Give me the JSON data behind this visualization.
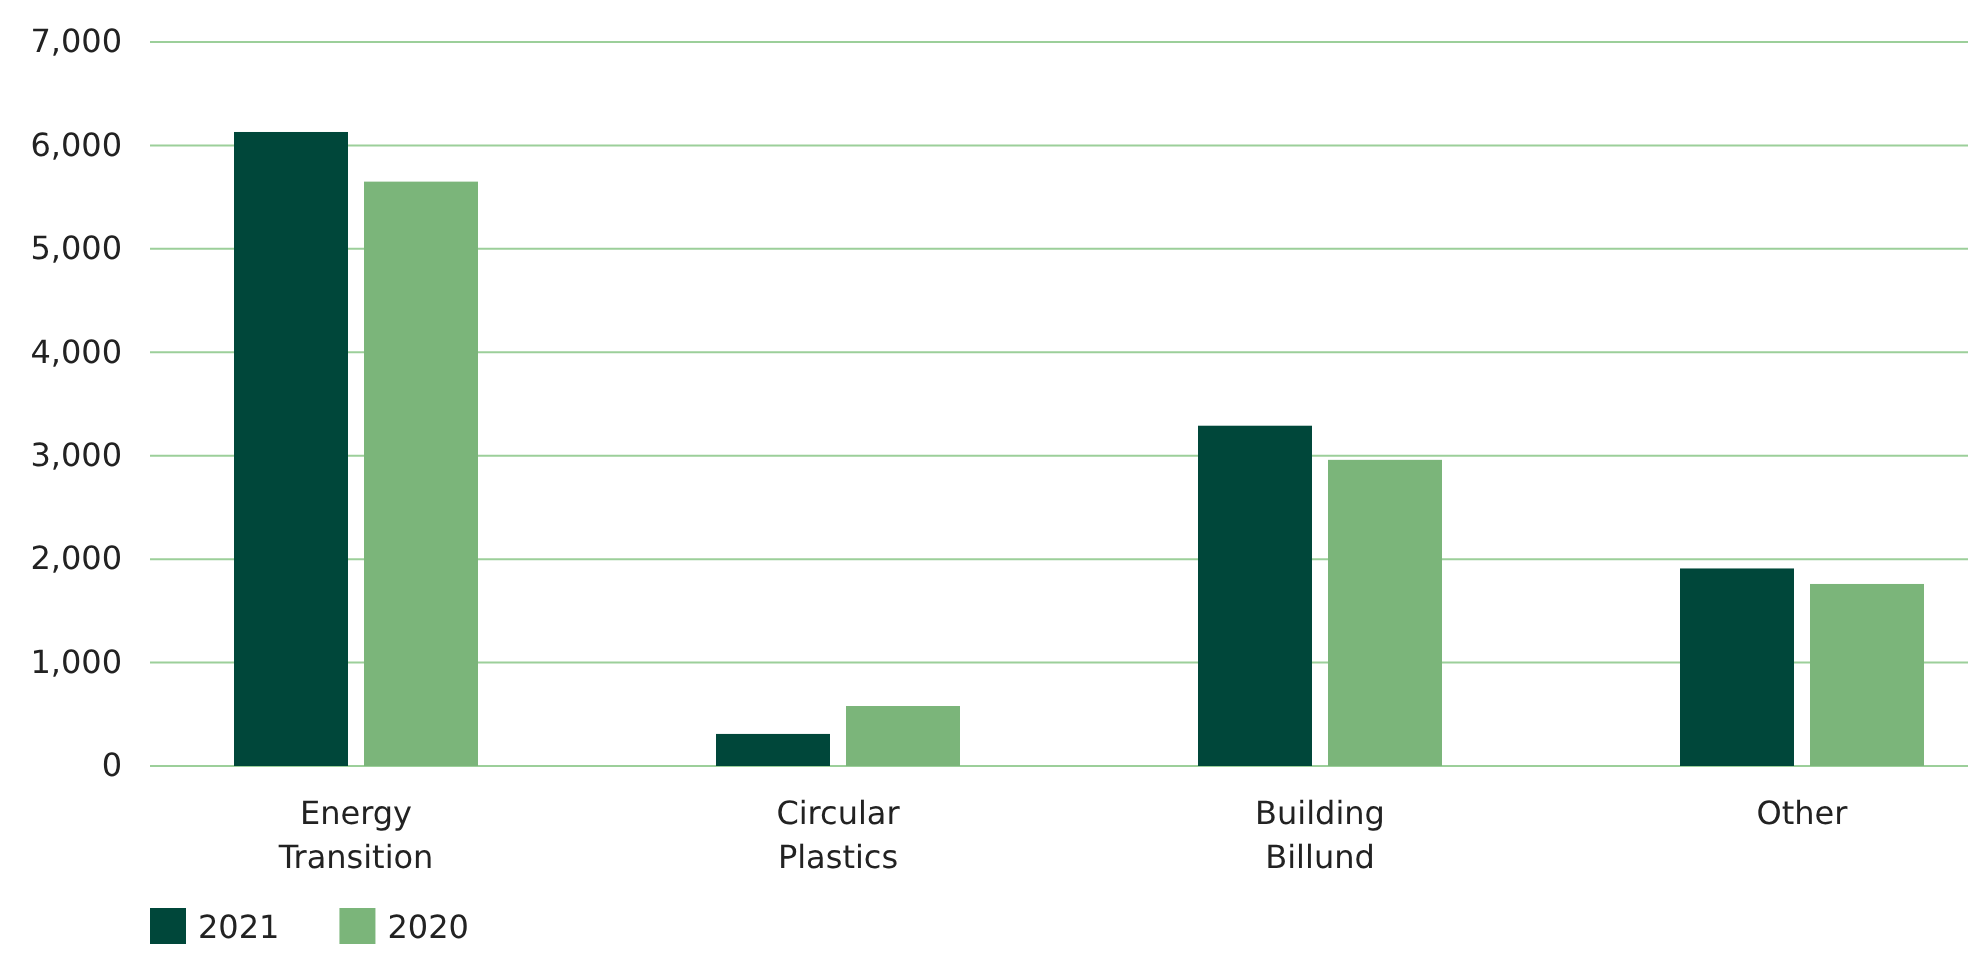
{
  "chart_data": {
    "type": "bar",
    "categories": [
      "Energy Transition",
      "Circular Plastics",
      "Building Billund",
      "Other"
    ],
    "series": [
      {
        "name": "2021",
        "color": "#00473a",
        "values": [
          6130,
          310,
          3290,
          1910
        ]
      },
      {
        "name": "2020",
        "color": "#7bb57a",
        "values": [
          5650,
          580,
          2960,
          1760
        ]
      }
    ],
    "ylim": [
      0,
      7000
    ],
    "yticks": [
      {
        "value": 0,
        "label": "0"
      },
      {
        "value": 1000,
        "label": "1,000"
      },
      {
        "value": 2000,
        "label": "2,000"
      },
      {
        "value": 3000,
        "label": "3,000"
      },
      {
        "value": 4000,
        "label": "4,000"
      },
      {
        "value": 5000,
        "label": "5,000"
      },
      {
        "value": 6000,
        "label": "6,000"
      },
      {
        "value": 7000,
        "label": "7,000"
      }
    ],
    "grid": "y",
    "legend": "bottom left"
  }
}
